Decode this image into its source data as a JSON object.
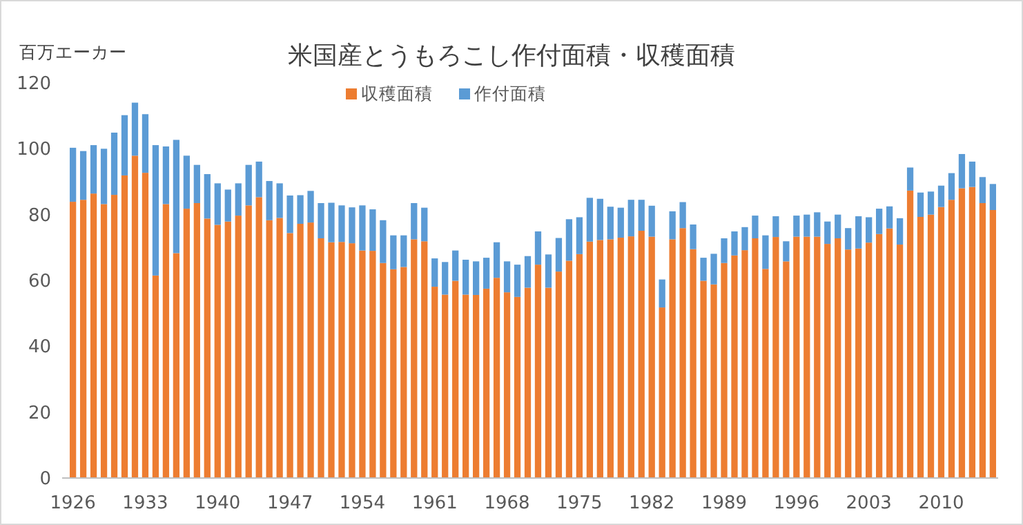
{
  "chart_data": {
    "type": "bar",
    "title": "米国産とうもろこし作付面積・収穫面積",
    "ylabel": "百万エーカー",
    "stacked": true,
    "legend": "top",
    "grid": false,
    "categories": [
      "1926",
      null,
      null,
      null,
      null,
      null,
      null,
      "1933",
      null,
      null,
      null,
      null,
      null,
      null,
      "1940",
      null,
      null,
      null,
      null,
      null,
      null,
      "1947",
      null,
      null,
      null,
      null,
      null,
      null,
      "1954",
      null,
      null,
      null,
      null,
      null,
      null,
      "1961",
      null,
      null,
      null,
      null,
      null,
      null,
      "1968",
      null,
      null,
      null,
      null,
      null,
      null,
      "1975",
      null,
      null,
      null,
      null,
      null,
      null,
      "1982",
      null,
      null,
      null,
      null,
      null,
      null,
      "1989",
      null,
      null,
      null,
      null,
      null,
      null,
      "1996",
      null,
      null,
      null,
      null,
      null,
      null,
      "2003",
      null,
      null,
      null,
      null,
      null,
      null,
      "2010",
      null,
      null,
      null,
      null,
      null
    ],
    "ylim": [
      0,
      120
    ],
    "yticks": [
      0,
      20,
      40,
      60,
      80,
      100,
      120
    ],
    "series": [
      {
        "name": "収穫面積",
        "color": "#ed7d31",
        "values": [
          83.9,
          84.5,
          86.4,
          83.2,
          86.0,
          91.9,
          97.9,
          92.7,
          61.5,
          83.2,
          68.3,
          81.8,
          83.5,
          78.8,
          76.9,
          77.9,
          79.7,
          82.8,
          85.3,
          78.3,
          79.0,
          74.4,
          77.2,
          77.6,
          72.8,
          71.6,
          71.7,
          71.3,
          69.1,
          69.0,
          65.3,
          63.4,
          64.1,
          72.5,
          71.9,
          58.1,
          55.7,
          59.9,
          55.7,
          55.6,
          57.5,
          60.8,
          56.4,
          55.0,
          57.8,
          64.8,
          57.8,
          62.7,
          66.0,
          68.0,
          71.8,
          72.3,
          72.5,
          73.0,
          73.4,
          75.1,
          73.3,
          51.8,
          72.5,
          75.9,
          69.5,
          59.9,
          58.8,
          65.3,
          67.6,
          69.2,
          72.8,
          63.5,
          73.2,
          65.8,
          73.3,
          73.3,
          73.3,
          71.1,
          72.8,
          69.4,
          69.7,
          71.5,
          74.1,
          75.8,
          70.9,
          87.3,
          79.3,
          80.0,
          82.3,
          84.5,
          88.0,
          88.4,
          83.5,
          81.4
        ]
      },
      {
        "name": "作付面積",
        "color": "#5b9bd5",
        "values": [
          16.4,
          14.8,
          14.7,
          16.8,
          18.9,
          18.3,
          16.1,
          17.8,
          39.6,
          17.5,
          34.4,
          16.1,
          11.6,
          13.5,
          12.6,
          9.7,
          9.8,
          12.3,
          10.8,
          11.9,
          10.5,
          11.4,
          8.7,
          9.6,
          10.7,
          12.0,
          11.1,
          10.9,
          13.7,
          12.6,
          13.0,
          10.3,
          9.6,
          11.0,
          10.2,
          8.6,
          9.9,
          9.2,
          10.6,
          10.2,
          9.4,
          10.8,
          9.4,
          9.8,
          9.6,
          10.1,
          10.1,
          10.2,
          12.6,
          11.2,
          13.3,
          12.5,
          9.9,
          9.1,
          11.1,
          9.4,
          9.4,
          8.5,
          8.5,
          7.9,
          7.5,
          7.0,
          9.3,
          7.5,
          7.3,
          7.0,
          6.9,
          10.2,
          6.3,
          6.1,
          6.4,
          6.7,
          7.4,
          6.8,
          7.2,
          6.5,
          9.8,
          7.7,
          7.7,
          6.7,
          8.0,
          7.0,
          7.4,
          7.0,
          6.5,
          8.1,
          10.4,
          7.7,
          7.9,
          7.9
        ]
      }
    ]
  }
}
